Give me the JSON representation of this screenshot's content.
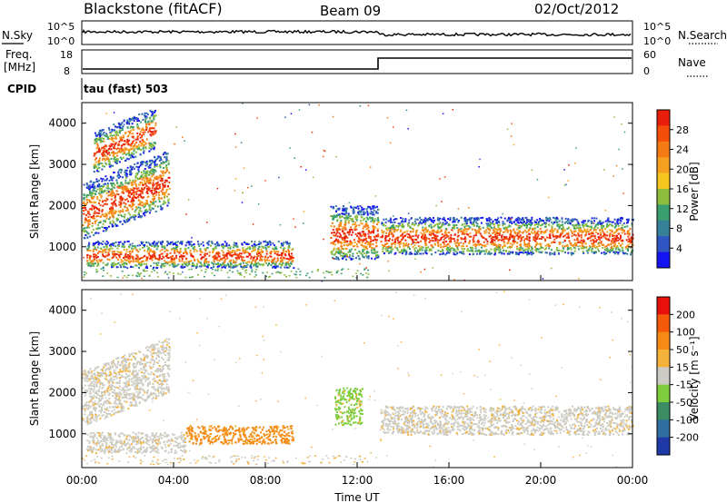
{
  "header": {
    "station": "Blackstone (fitACF)",
    "beam": "Beam 09",
    "date": "02/Oct/2012"
  },
  "panels": {
    "nsky_label": "N.Sky",
    "nsky_ticks": [
      "10^5",
      "10^0"
    ],
    "nsearch_label": "N.Search",
    "nsearch_ticks": [
      "10^5",
      "10^0"
    ],
    "freq_label": "Freq.",
    "freq_unit": "[MHz]",
    "freq_ticks": [
      "18",
      "8"
    ],
    "nave_label": "Nave",
    "nave_ticks": [
      "60",
      "0"
    ],
    "cpid_label": "CPID",
    "cpid_value": "tau (fast) 503"
  },
  "chart_data": [
    {
      "type": "heatmap",
      "name": "power",
      "ylabel": "Slant Range [km]",
      "yticks": [
        "4000",
        "3000",
        "2000",
        "1000"
      ],
      "ylim": [
        180,
        4500
      ],
      "xlim": [
        0,
        24
      ],
      "colorbar_label": "Power [dB]",
      "colorbar_ticks": [
        "28",
        "24",
        "20",
        "16",
        "12",
        "8",
        "4"
      ],
      "colorbar_colors": [
        "#1414f0",
        "#2f55c2",
        "#37809a",
        "#3b9e6e",
        "#8cbc3c",
        "#f5c41e",
        "#f5a01e",
        "#f57a14",
        "#f54e0a",
        "#e81e0a"
      ],
      "features": [
        {
          "t": [
            0.2,
            9.2
          ],
          "range": [
            700,
            1350
          ]
        },
        {
          "t": [
            0.0,
            3.8
          ],
          "range": [
            1600,
            2950
          ]
        },
        {
          "t": [
            0.5,
            3.2
          ],
          "range": [
            3100,
            4100
          ]
        },
        {
          "t": [
            10.8,
            12.9
          ],
          "range": [
            1100,
            2400
          ]
        },
        {
          "t": [
            13.0,
            24.0
          ],
          "range": [
            1100,
            2000
          ]
        }
      ]
    },
    {
      "type": "heatmap",
      "name": "velocity",
      "ylabel": "Slant Range [km]",
      "yticks": [
        "4000",
        "3000",
        "2000",
        "1000"
      ],
      "ylim": [
        180,
        4500
      ],
      "xlim": [
        0,
        24
      ],
      "xlabel": "Time UT",
      "xticks": [
        "00:00",
        "04:00",
        "08:00",
        "12:00",
        "16:00",
        "20:00",
        "00:00"
      ],
      "colorbar_label": "Velocity [m s⁻¹]",
      "colorbar_ticks": [
        "200",
        "100",
        "50",
        "15",
        "-15",
        "-50",
        "-100",
        "-200"
      ],
      "colorbar_colors": [
        "#1f3aa8",
        "#2f6e9e",
        "#3b8e62",
        "#7ccc3c",
        "#cdccc4",
        "#f5b23a",
        "#f58a14",
        "#f55a0a",
        "#e8100a"
      ],
      "features": [
        {
          "t": [
            0.2,
            4.5
          ],
          "range": [
            700,
            1200
          ],
          "color": "gray"
        },
        {
          "t": [
            4.5,
            9.2
          ],
          "range": [
            900,
            1350
          ],
          "color": "orange"
        },
        {
          "t": [
            0.0,
            3.8
          ],
          "range": [
            1600,
            2950
          ],
          "color": "gray"
        },
        {
          "t": [
            11.0,
            12.2
          ],
          "range": [
            1500,
            2400
          ],
          "color": "green"
        },
        {
          "t": [
            13.0,
            24.0
          ],
          "range": [
            1200,
            1900
          ],
          "color": "gray"
        }
      ]
    }
  ]
}
